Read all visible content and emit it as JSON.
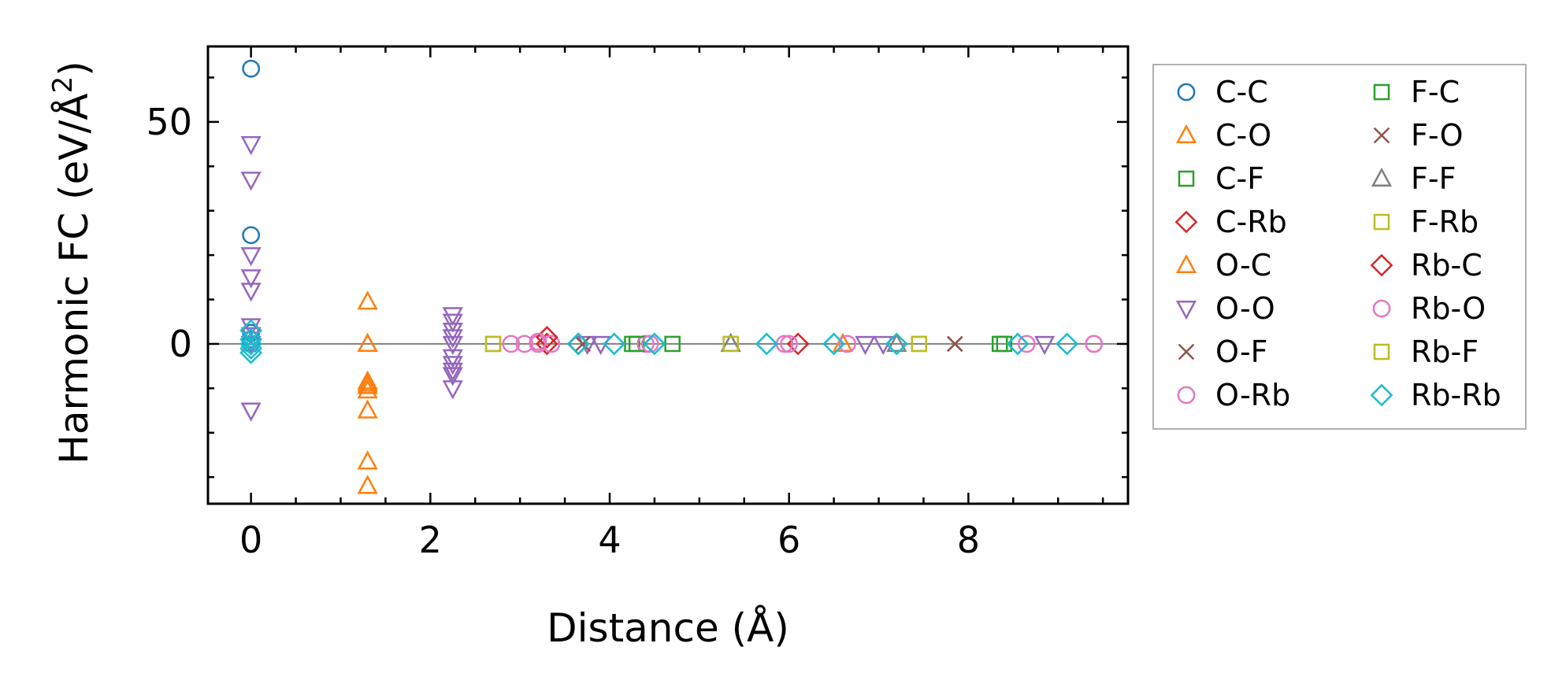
{
  "chart_data": {
    "type": "scatter",
    "title": "",
    "xlabel": "Distance (Å)",
    "ylabel_main": "Harmonic FC (eV/Å",
    "ylabel_sup": "2",
    "ylabel_close": ")",
    "xlim": [
      -0.48,
      9.78
    ],
    "ylim": [
      -36,
      67
    ],
    "xticks": [
      0,
      2,
      4,
      6,
      8
    ],
    "yticks": [
      0,
      50
    ],
    "x_minor_step": 0.5,
    "y_minor_step": 10,
    "zero_line": true,
    "grid": false,
    "legend_position": "right-outside",
    "legend_columns": 2,
    "series": [
      {
        "name": "C-C",
        "marker": "circle",
        "color": "#1f77b4",
        "x": [
          0,
          0,
          0,
          0,
          0
        ],
        "y": [
          62,
          24.5,
          2.5,
          1,
          0
        ]
      },
      {
        "name": "C-O",
        "marker": "triangle-up",
        "color": "#ff7f0e",
        "x": [
          1.3,
          1.3,
          1.3,
          1.3,
          1.3,
          1.3,
          1.3,
          1.3
        ],
        "y": [
          9.5,
          0,
          -8.5,
          -9.5,
          -10.5,
          -15,
          -26.5,
          -32
        ]
      },
      {
        "name": "C-F",
        "marker": "square",
        "color": "#2ca02c",
        "x": [
          4.25,
          4.7,
          8.4
        ],
        "y": [
          0,
          0,
          0
        ]
      },
      {
        "name": "C-Rb",
        "marker": "diamond",
        "color": "#d62728",
        "x": [
          3.3,
          3.65,
          6.1
        ],
        "y": [
          0,
          0,
          0
        ]
      },
      {
        "name": "O-C",
        "marker": "triangle-up",
        "color": "#ff7f0e",
        "x": [
          1.3,
          1.3,
          6.6
        ],
        "y": [
          -9,
          0,
          0
        ]
      },
      {
        "name": "O-O",
        "marker": "triangle-down",
        "color": "#9467bd",
        "x": [
          0,
          0,
          0,
          0,
          0,
          0,
          0,
          0,
          0,
          2.25,
          2.25,
          2.25,
          2.25,
          2.25,
          2.25,
          2.25,
          2.25,
          2.25,
          2.25,
          3.75,
          3.9,
          6.85,
          7.05,
          8.85
        ],
        "y": [
          45,
          37,
          20,
          15,
          12,
          4,
          2,
          0,
          -15,
          6.5,
          5,
          3,
          1.5,
          0,
          -3,
          -4.5,
          -6,
          -7,
          -10,
          0,
          0,
          0,
          0,
          0
        ]
      },
      {
        "name": "O-F",
        "marker": "x",
        "color": "#8c564b",
        "x": [
          7.85
        ],
        "y": [
          0
        ]
      },
      {
        "name": "O-Rb",
        "marker": "circle",
        "color": "#e377c2",
        "x": [
          2.9,
          3.05,
          3.2,
          3.35,
          4.4,
          5.95,
          6.65,
          8.65,
          9.4
        ],
        "y": [
          0,
          0,
          0,
          0,
          0,
          0,
          0,
          0,
          0
        ]
      },
      {
        "name": "F-C",
        "marker": "square",
        "color": "#2ca02c",
        "x": [
          4.3,
          8.35
        ],
        "y": [
          0,
          0
        ]
      },
      {
        "name": "F-O",
        "marker": "x",
        "color": "#8c564b",
        "x": [
          3.7,
          7.85
        ],
        "y": [
          0,
          0
        ]
      },
      {
        "name": "F-F",
        "marker": "triangle-up",
        "color": "#7f7f7f",
        "x": [
          5.35,
          7.2
        ],
        "y": [
          0,
          0
        ]
      },
      {
        "name": "F-Rb",
        "marker": "square",
        "color": "#bcbd22",
        "x": [
          2.7,
          5.35,
          7.45
        ],
        "y": [
          0,
          0,
          0
        ]
      },
      {
        "name": "Rb-C",
        "marker": "diamond",
        "color": "#d62728",
        "x": [
          3.3,
          3.65
        ],
        "y": [
          1.5,
          0
        ]
      },
      {
        "name": "Rb-O",
        "marker": "circle",
        "color": "#e377c2",
        "x": [
          3.2,
          4.45,
          6.0,
          9.4
        ],
        "y": [
          0.5,
          0,
          0,
          0
        ]
      },
      {
        "name": "Rb-F",
        "marker": "square",
        "color": "#bcbd22",
        "x": [
          2.7,
          7.45
        ],
        "y": [
          0,
          0
        ]
      },
      {
        "name": "Rb-Rb",
        "marker": "diamond",
        "color": "#17becf",
        "x": [
          0,
          0,
          0,
          0,
          0,
          3.65,
          4.05,
          4.5,
          5.75,
          6.5,
          7.2,
          8.55,
          9.1
        ],
        "y": [
          3,
          1,
          0,
          -1,
          -2,
          0,
          0,
          0,
          0,
          0,
          0,
          0,
          0
        ]
      }
    ]
  }
}
